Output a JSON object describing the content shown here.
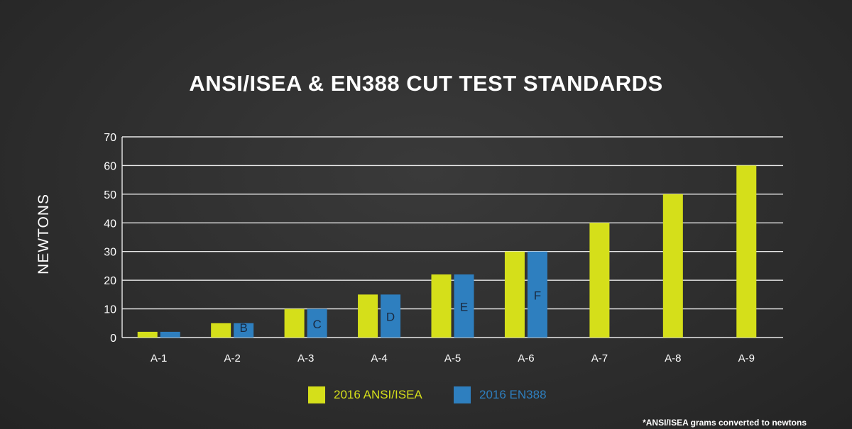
{
  "title": "ANSI/ISEA & EN388 CUT TEST STANDARDS",
  "footnote": "*ANSI/ISEA grams converted to newtons",
  "colors": {
    "ansi": "#d5df1a",
    "en388": "#2e7fbf",
    "grid": "#e8e8e8",
    "background": "#2f2f2f"
  },
  "legend": [
    {
      "label": "2016 ANSI/ISEA",
      "color": "#d5df1a"
    },
    {
      "label": "2016 EN388",
      "color": "#2e7fbf"
    }
  ],
  "chart_data": {
    "type": "bar",
    "title": "ANSI/ISEA & EN388 CUT TEST STANDARDS",
    "xlabel": "",
    "ylabel": "NEWTONS",
    "ylim": [
      0,
      70
    ],
    "yticks": [
      0,
      10,
      20,
      30,
      40,
      50,
      60,
      70
    ],
    "grid": true,
    "legend_position": "bottom",
    "categories": [
      "A-1",
      "A-2",
      "A-3",
      "A-4",
      "A-5",
      "A-6",
      "A-7",
      "A-8",
      "A-9"
    ],
    "series": [
      {
        "name": "2016 ANSI/ISEA",
        "values": [
          2,
          5,
          10,
          15,
          22,
          30,
          40,
          50,
          60
        ]
      },
      {
        "name": "2016 EN388",
        "values": [
          2,
          5,
          10,
          15,
          22,
          30,
          null,
          null,
          null
        ],
        "bar_labels": [
          "",
          "B",
          "C",
          "D",
          "E",
          "F",
          "",
          "",
          ""
        ]
      }
    ]
  }
}
